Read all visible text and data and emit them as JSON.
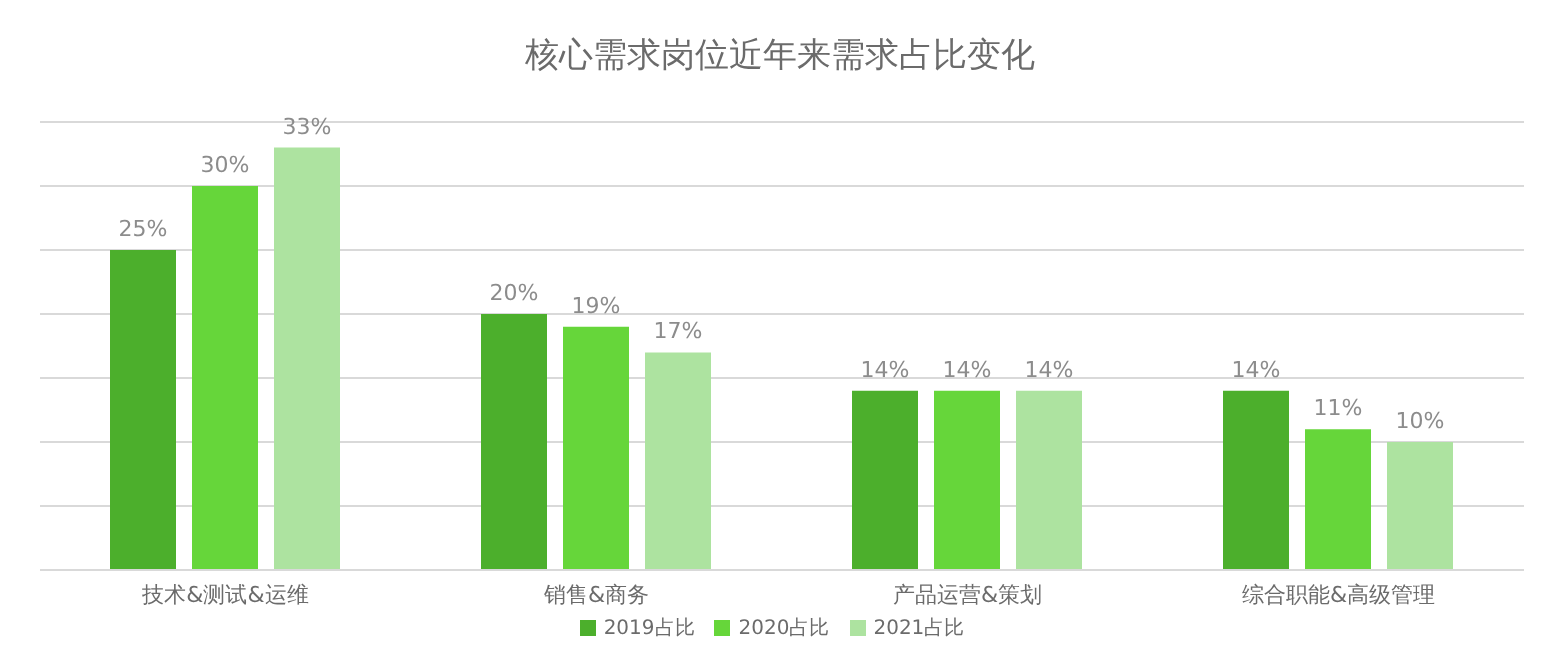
{
  "chart_data": {
    "type": "bar",
    "title": "核心需求岗位近年来需求占比变化",
    "categories": [
      "技术&测试&运维",
      "销售&商务",
      "产品运营&策划",
      "综合职能&高级管理"
    ],
    "series": [
      {
        "name": "2019占比",
        "color": "#4caf2c",
        "values": [
          25,
          20,
          14,
          14
        ],
        "value_labels": [
          "25%",
          "20%",
          "14%",
          "14%"
        ]
      },
      {
        "name": "2020占比",
        "color": "#66d63a",
        "values": [
          30,
          19,
          14,
          11
        ],
        "value_labels": [
          "30%",
          "19%",
          "14%",
          "11%"
        ]
      },
      {
        "name": "2021占比",
        "color": "#ade3a0",
        "values": [
          33,
          17,
          14,
          10
        ],
        "value_labels": [
          "33%",
          "17%",
          "14%",
          "10%"
        ]
      }
    ],
    "ylim": [
      0,
      35
    ],
    "yticks": [
      {
        "value": 0,
        "label": null
      },
      {
        "value": 5,
        "label": null
      },
      {
        "value": 10,
        "label": null
      },
      {
        "value": 15,
        "label": null
      },
      {
        "value": 20,
        "label": null
      },
      {
        "value": 25,
        "label": null
      },
      {
        "value": 30,
        "label": null
      },
      {
        "value": 35,
        "label": null
      }
    ],
    "tick_labels": "x",
    "grid": "y",
    "legend": "bottom"
  }
}
